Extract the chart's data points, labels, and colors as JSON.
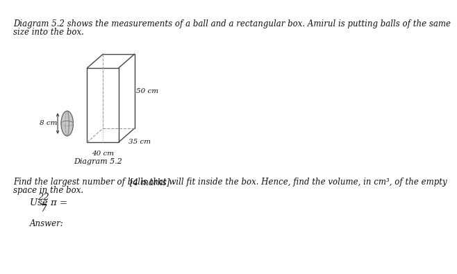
{
  "background_color": "#ffffff",
  "intro_line1": "Diagram 5.2 shows the measurements of a ball and a rectangular box. Amirul is putting balls of the same",
  "intro_line2": "size into the box.",
  "diagram_label": "Diagram 5.2",
  "question_line1": "Find the largest number of balls that will fit inside the box. Hence, find the volume, in cm³, of the empty",
  "question_line2": "space in the box.",
  "marks_text": "[4 marks]",
  "pi_label": "Use π = ",
  "pi_num": "22",
  "pi_den": "7",
  "answer_text": "Answer:",
  "font_size_body": 8.5,
  "font_size_small": 7.5,
  "font_size_math": 9.5,
  "box_color": "#444444",
  "ball_fill": "#c8c8c8",
  "ball_edge": "#555555"
}
